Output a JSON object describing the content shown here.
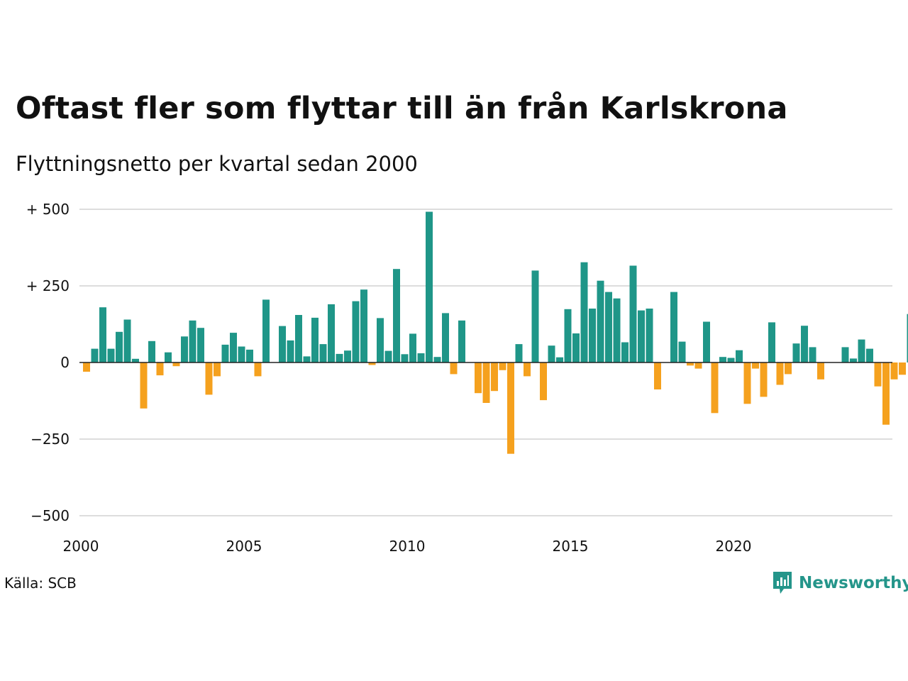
{
  "title": "Oftast fler som flyttar till än från Karlskrona",
  "subtitle": "Flyttningsnetto per kvartal sedan 2000",
  "source": "Källa: SCB",
  "brand": "Newsworthy",
  "colors": {
    "positive": "#1f9688",
    "negative": "#f5a11e",
    "grid": "#dddddd",
    "axis": "#222222",
    "brand": "#24958a"
  },
  "icons": {
    "logo": "bar-chart-speech-bubble-icon"
  },
  "chart_data": {
    "type": "bar",
    "title": "Oftast fler som flyttar till än från Karlskrona",
    "subtitle": "Flyttningsnetto per kvartal sedan 2000",
    "ylim": [
      -500,
      500
    ],
    "xlim": [
      2000,
      2024.75
    ],
    "y_ticks": [
      500,
      250,
      0,
      -250,
      -500
    ],
    "y_tick_labels": [
      "+ 500",
      "+ 250",
      "0",
      "−250",
      "−500"
    ],
    "x_ticks": [
      2000,
      2005,
      2010,
      2015,
      2020
    ],
    "x_tick_labels": [
      "2000",
      "2005",
      "2010",
      "2015",
      "2020"
    ],
    "grid": true,
    "start_year": 2000,
    "quarters_per_year": 4,
    "values": [
      -30,
      45,
      180,
      45,
      100,
      140,
      12,
      -150,
      70,
      -42,
      33,
      -12,
      85,
      137,
      113,
      -105,
      -45,
      58,
      97,
      52,
      42,
      -45,
      205,
      0,
      119,
      72,
      155,
      20,
      146,
      60,
      190,
      28,
      39,
      200,
      238,
      -8,
      145,
      38,
      305,
      27,
      94,
      30,
      492,
      18,
      161,
      -38,
      137,
      0,
      -100,
      -132,
      -93,
      -25,
      -298,
      60,
      -45,
      300,
      -123,
      55,
      17,
      174,
      95,
      327,
      176,
      267,
      230,
      209,
      66,
      316,
      170,
      176,
      -88,
      0,
      230,
      68,
      -10,
      -20,
      133,
      -165,
      18,
      15,
      40,
      -135,
      -20,
      -112,
      131,
      -73,
      -38,
      62,
      120,
      50,
      -55,
      0,
      0,
      50,
      13,
      75,
      45,
      -78,
      -203,
      -55,
      -40,
      158
    ]
  }
}
